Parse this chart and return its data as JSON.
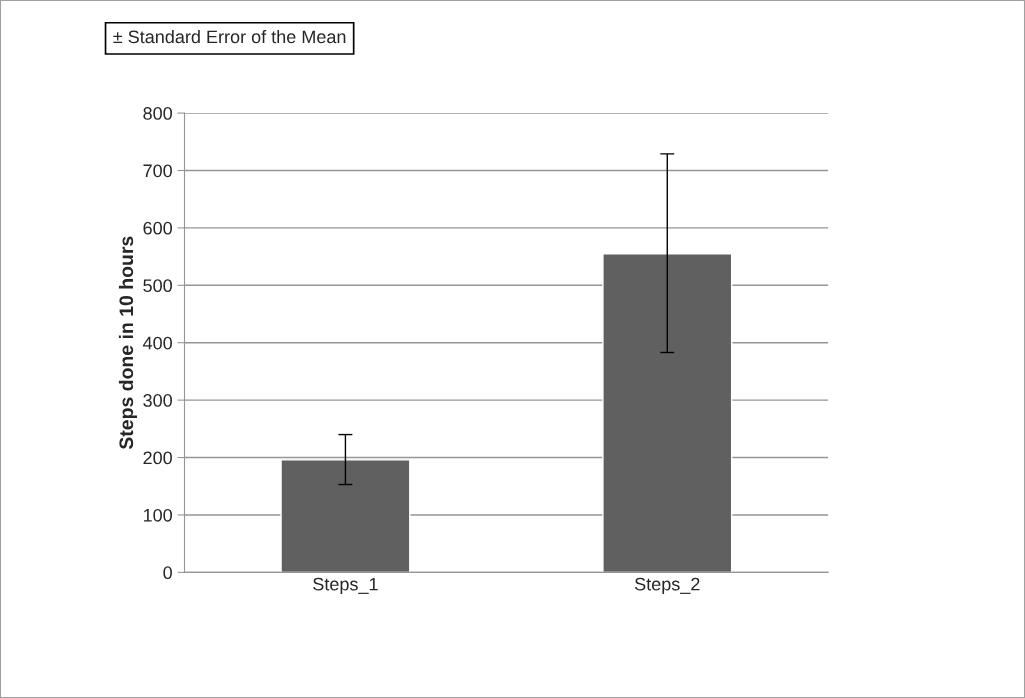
{
  "chart_data": {
    "type": "bar",
    "categories": [
      "Steps_1",
      "Steps_2"
    ],
    "values": [
      196,
      555
    ],
    "errors": [
      [
        153,
        240
      ],
      [
        383,
        729
      ]
    ],
    "color": "#606060",
    "ylabel": "Steps done in 10 hours",
    "ylim": [
      0,
      800
    ],
    "yticks": [
      0,
      100,
      200,
      300,
      400,
      500,
      600,
      700,
      800
    ],
    "grid": "y",
    "annotations": [
      "± Standard Error of the Mean"
    ]
  }
}
